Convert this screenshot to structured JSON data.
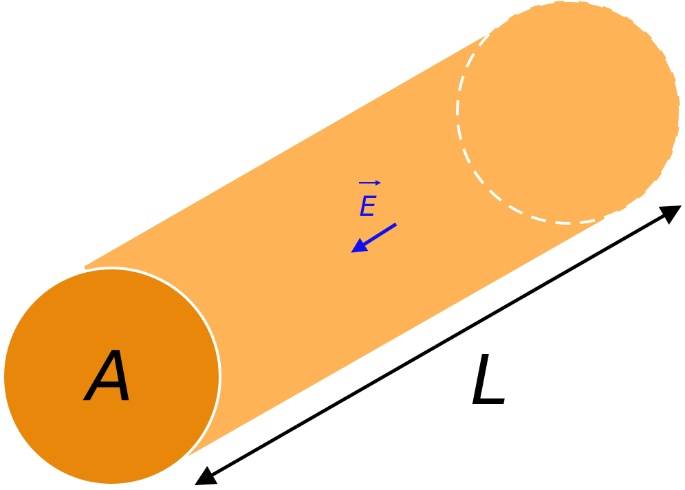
{
  "diagram": {
    "face_label": "A",
    "length_label": "L",
    "field_label": "E",
    "colors": {
      "body": "#FDB356",
      "front_face": "#E8870A",
      "outline": "#FFFFFF",
      "field_arrow": "#1010F0",
      "dimension_arrow": "#000000"
    }
  }
}
